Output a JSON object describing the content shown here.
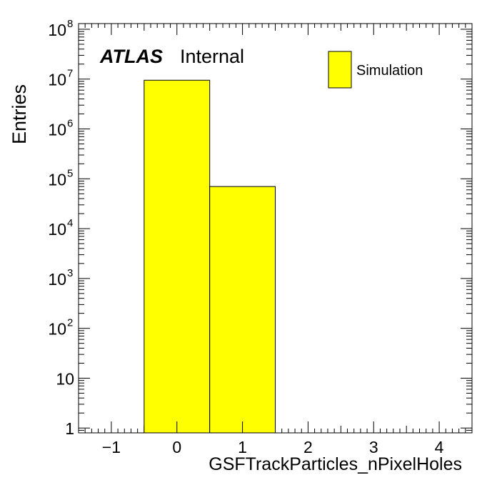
{
  "chart_data": {
    "type": "bar",
    "histtype": "step-filled",
    "bin_edges": [
      -0.5,
      0.5,
      1.5
    ],
    "values": [
      9500000,
      70000
    ],
    "xlabel": "GSFTrackParticles_nPixelHoles",
    "ylabel": "Entries",
    "xlim": [
      -1.5,
      4.5
    ],
    "ylim": [
      0.8,
      130000000
    ],
    "yscale": "log",
    "grid": false,
    "legend": {
      "placement": "top-right",
      "entries": [
        "Simulation"
      ]
    },
    "x_ticks": [
      {
        "value": -1,
        "label": "−1"
      },
      {
        "value": 0,
        "label": "0"
      },
      {
        "value": 1,
        "label": "1"
      },
      {
        "value": 2,
        "label": "2"
      },
      {
        "value": 3,
        "label": "3"
      },
      {
        "value": 4,
        "label": "4"
      }
    ],
    "y_ticks": [
      {
        "value": 1,
        "base": "1",
        "exp": ""
      },
      {
        "value": 10,
        "base": "10",
        "exp": ""
      },
      {
        "value": 100,
        "base": "10",
        "exp": "2"
      },
      {
        "value": 1000,
        "base": "10",
        "exp": "3"
      },
      {
        "value": 10000,
        "base": "10",
        "exp": "4"
      },
      {
        "value": 100000,
        "base": "10",
        "exp": "5"
      },
      {
        "value": 1000000,
        "base": "10",
        "exp": "6"
      },
      {
        "value": 10000000,
        "base": "10",
        "exp": "7"
      },
      {
        "value": 100000000,
        "base": "10",
        "exp": "8"
      }
    ],
    "label": {
      "experiment": "ATLAS",
      "status": "Internal"
    },
    "colors": {
      "fill": "#ffff00",
      "line": "#000000"
    }
  }
}
